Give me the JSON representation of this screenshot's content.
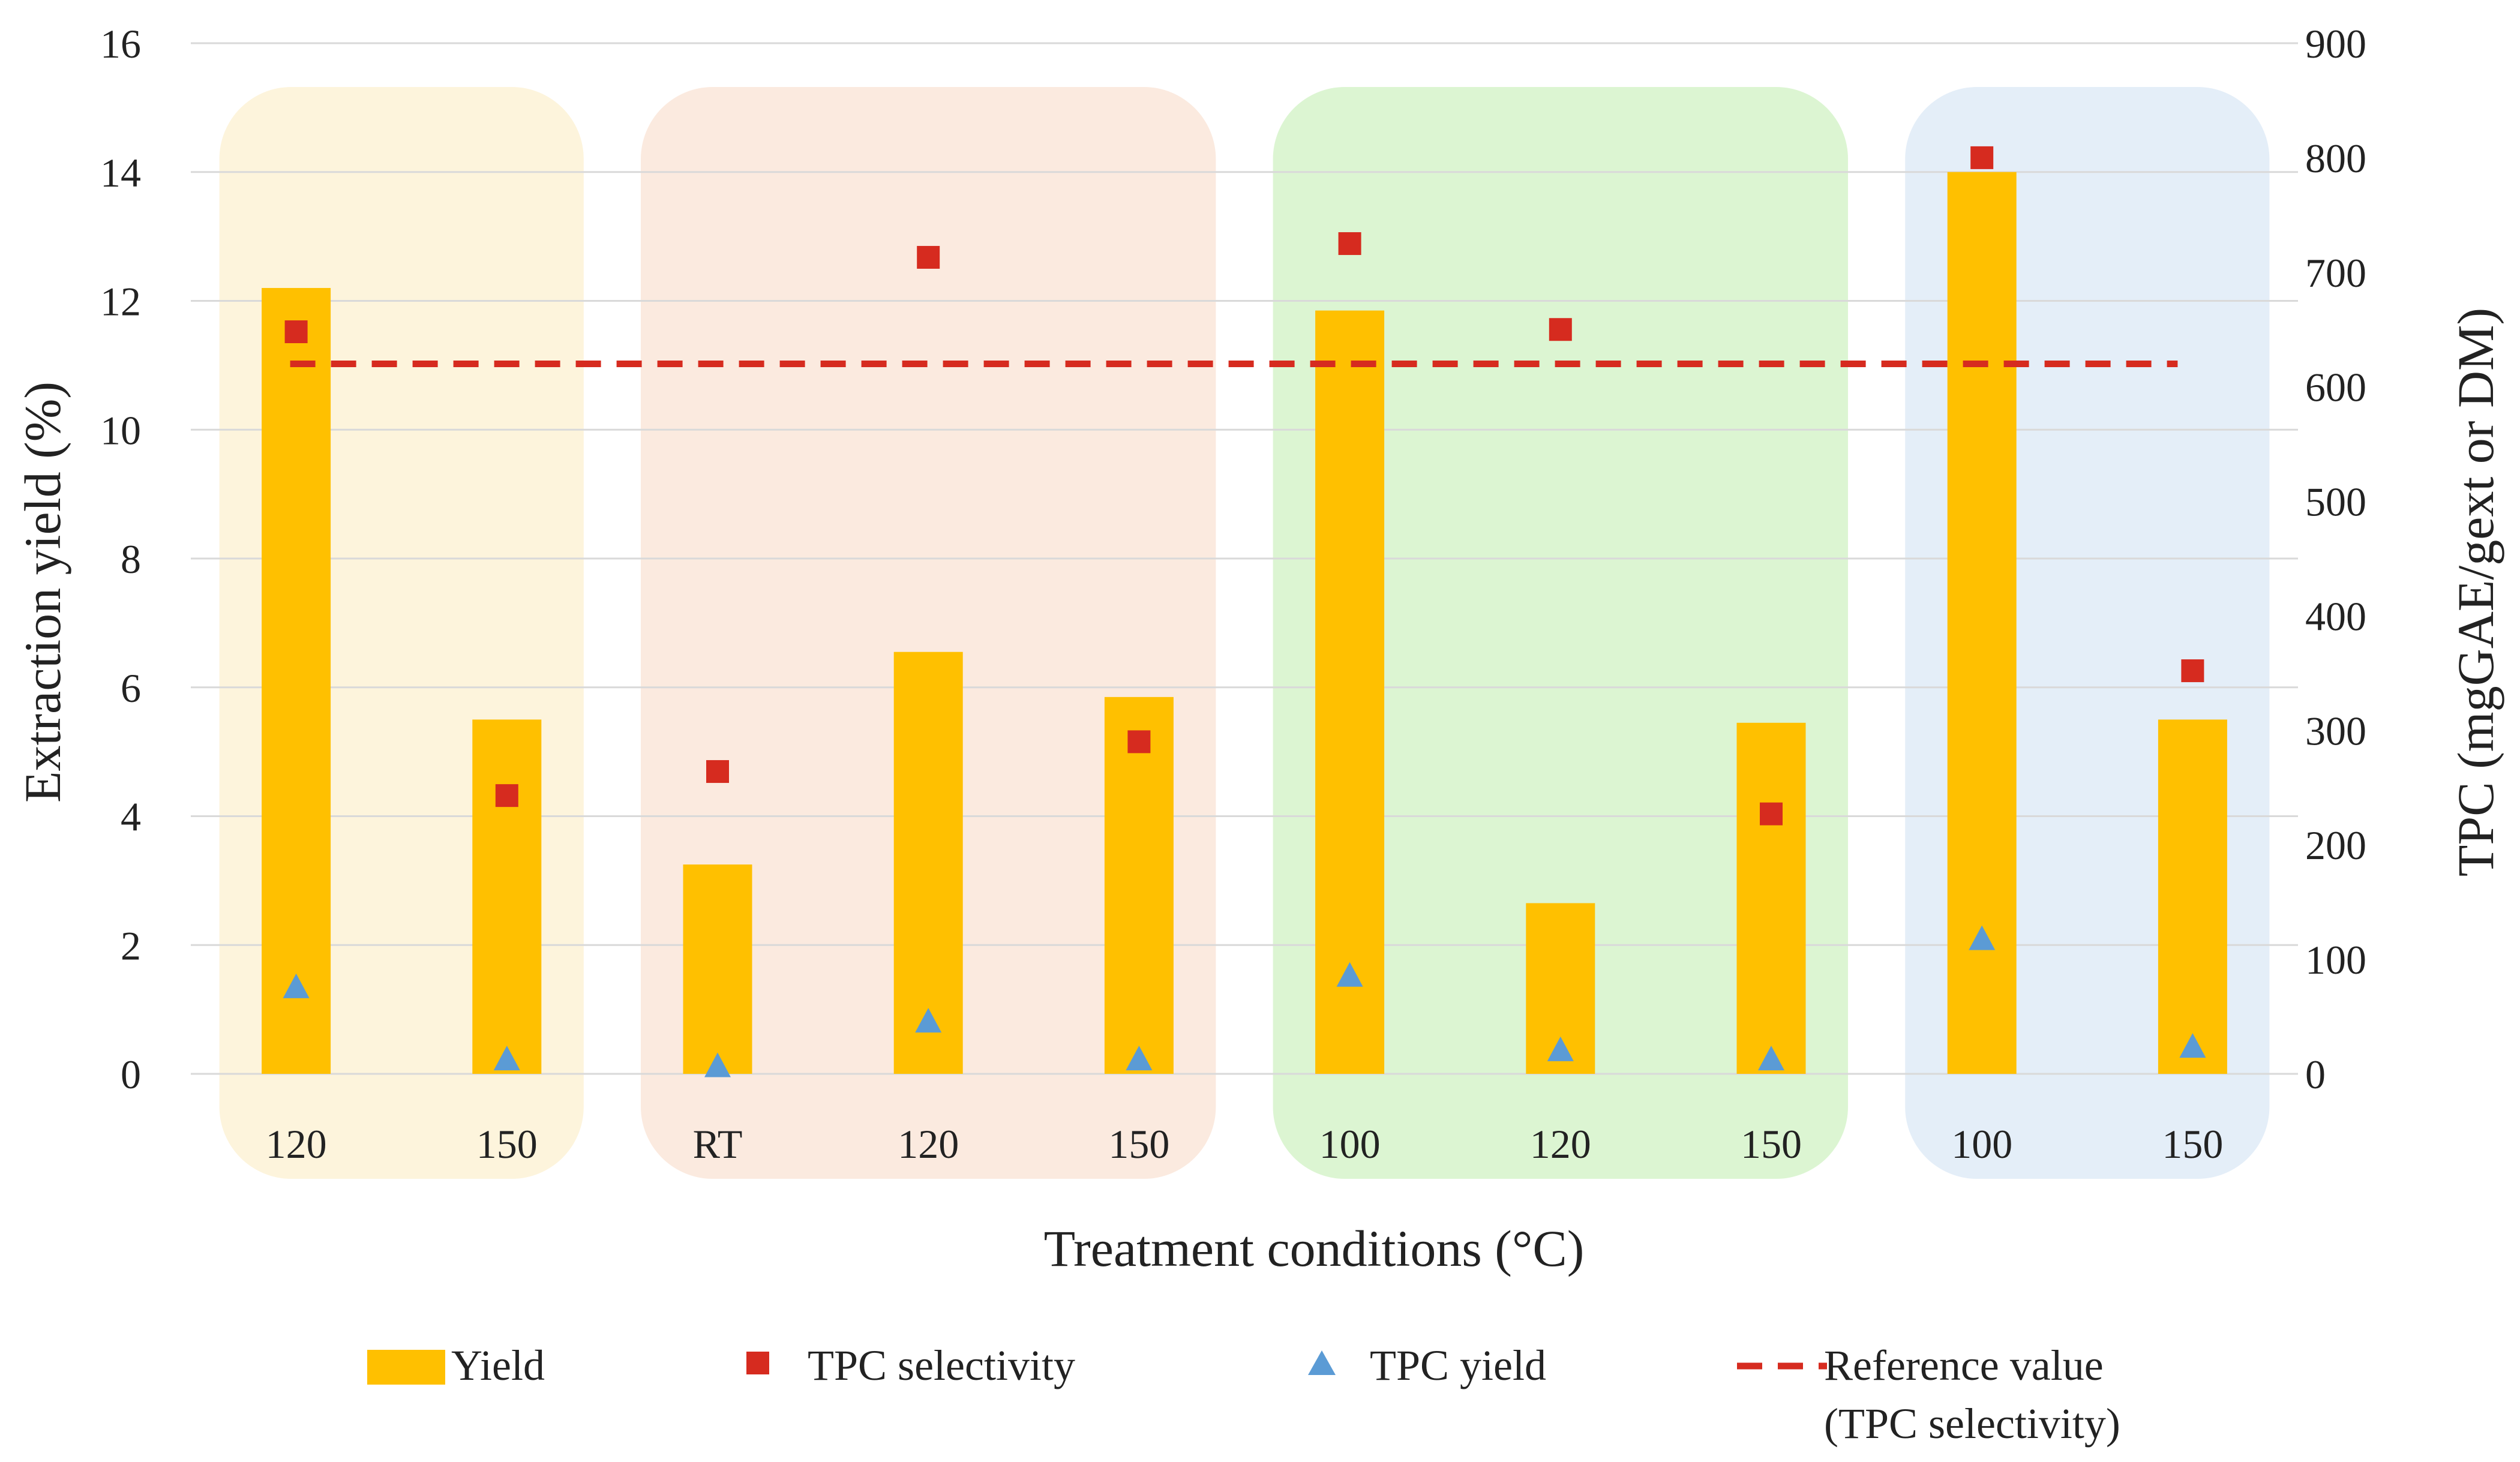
{
  "chart_data": {
    "type": "bar",
    "title": "",
    "xlabel": "Treatment conditions (°C)",
    "ylabel_left": "Extraction yield (%)",
    "ylabel_right": "TPC (mgGAE/gext or DM)",
    "ylim_left": [
      0,
      16
    ],
    "ylim_right": [
      0,
      900
    ],
    "yticks_left": [
      "0",
      "2",
      "4",
      "6",
      "8",
      "10",
      "12",
      "14",
      "16"
    ],
    "yticks_right": [
      "0",
      "100",
      "200",
      "300",
      "400",
      "500",
      "600",
      "700",
      "800",
      "900"
    ],
    "grid": true,
    "categories": [
      "120",
      "150",
      "RT",
      "120",
      "150",
      "100",
      "120",
      "150",
      "100",
      "150"
    ],
    "groups": [
      {
        "start": 0,
        "end": 1,
        "color": "#fdf4dc"
      },
      {
        "start": 2,
        "end": 4,
        "color": "#fbeadf"
      },
      {
        "start": 5,
        "end": 7,
        "color": "#dcf5d2"
      },
      {
        "start": 8,
        "end": 9,
        "color": "#e4eef8"
      }
    ],
    "series": [
      {
        "name": "Yield",
        "kind": "bar",
        "axis": "left",
        "color": "#ffc000",
        "values": [
          12.2,
          5.5,
          3.25,
          6.55,
          5.85,
          11.85,
          2.65,
          5.45,
          14.0,
          5.5
        ]
      },
      {
        "name": "TPC selectivity",
        "kind": "scatter",
        "marker": "square",
        "axis": "right",
        "color": "#d62b1f",
        "values": [
          648,
          243,
          264,
          713,
          290,
          725,
          650,
          227,
          800,
          352
        ]
      },
      {
        "name": "TPC yield",
        "kind": "scatter",
        "marker": "triangle",
        "axis": "right",
        "color": "#5b9bd5",
        "values": [
          75,
          12,
          6,
          45,
          12,
          85,
          20,
          12,
          117,
          23
        ]
      },
      {
        "name": "Reference value",
        "name_line2": "(TPC selectivity)",
        "kind": "line",
        "style": "dashed",
        "axis": "right",
        "color": "#d62b1f",
        "value": 620
      }
    ],
    "legend_position": "bottom"
  }
}
